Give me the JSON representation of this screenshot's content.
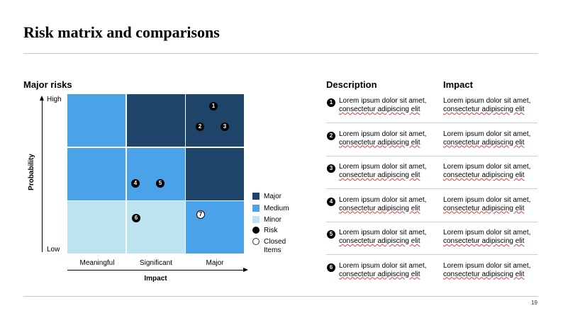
{
  "slide": {
    "title": "Risk matrix and comparisons",
    "page_number": "19"
  },
  "matrix": {
    "title": "Major risks",
    "y_axis_label": "Probability",
    "y_high": "High",
    "y_low": "Low",
    "x_axis_label": "Impact",
    "x_categories": [
      "Meaningful",
      "Significant",
      "Major"
    ],
    "levels": {
      "major": "#1f4469",
      "medium": "#4aa3e8",
      "minor": "#bde3f0"
    },
    "cells": [
      [
        "medium",
        "major",
        "major"
      ],
      [
        "medium",
        "medium",
        "major"
      ],
      [
        "minor",
        "minor",
        "medium"
      ]
    ],
    "risks": [
      {
        "id": "1",
        "impact": "Major",
        "probability": "High",
        "closed": false
      },
      {
        "id": "2",
        "impact": "Major",
        "probability": "High",
        "closed": false
      },
      {
        "id": "3",
        "impact": "Major",
        "probability": "High",
        "closed": false
      },
      {
        "id": "4",
        "impact": "Significant",
        "probability": "Medium",
        "closed": false
      },
      {
        "id": "5",
        "impact": "Significant",
        "probability": "Medium",
        "closed": false
      },
      {
        "id": "6",
        "impact": "Significant",
        "probability": "Low",
        "closed": false
      },
      {
        "id": "7",
        "impact": "Major",
        "probability": "Low",
        "closed": true
      }
    ]
  },
  "legend": {
    "items": [
      {
        "label": "Major",
        "color": "#1f4469",
        "shape": "square"
      },
      {
        "label": "Medium",
        "color": "#4aa3e8",
        "shape": "square"
      },
      {
        "label": "Minor",
        "color": "#bde3f0",
        "shape": "square"
      },
      {
        "label": "Risk",
        "color": "#000000",
        "shape": "filled-circle"
      },
      {
        "label": "Closed Items",
        "color": "#ffffff",
        "shape": "open-circle"
      }
    ]
  },
  "table": {
    "headers": {
      "description": "Description",
      "impact": "Impact"
    },
    "rows": [
      {
        "num": "1",
        "description": [
          "Lorem ipsum dolor sit amet,",
          "consectetur adipiscing elit"
        ],
        "impact": [
          "Lorem ipsum dolor sit amet,",
          "consectetur adipiscing elit"
        ]
      },
      {
        "num": "2",
        "description": [
          "Lorem ipsum dolor sit amet,",
          "consectetur adipiscing elit"
        ],
        "impact": [
          "Lorem ipsum dolor sit amet,",
          "consectetur adipiscing elit"
        ]
      },
      {
        "num": "3",
        "description": [
          "Lorem ipsum dolor sit amet,",
          "consectetur adipiscing elit"
        ],
        "impact": [
          "Lorem ipsum dolor sit amet,",
          "consectetur adipiscing elit"
        ]
      },
      {
        "num": "4",
        "description": [
          "Lorem ipsum dolor sit amet,",
          "consectetur adipiscing elit"
        ],
        "impact": [
          "Lorem ipsum dolor sit amet,",
          "consectetur adipiscing elit"
        ]
      },
      {
        "num": "5",
        "description": [
          "Lorem ipsum dolor sit amet,",
          "consectetur adipiscing elit"
        ],
        "impact": [
          "Lorem ipsum dolor sit amet,",
          "consectetur adipiscing elit"
        ]
      },
      {
        "num": "6",
        "description": [
          "Lorem ipsum dolor sit amet,",
          "consectetur adipiscing elit"
        ],
        "impact": [
          "Lorem ipsum dolor sit amet,",
          "consectetur adipiscing elit"
        ]
      }
    ]
  }
}
